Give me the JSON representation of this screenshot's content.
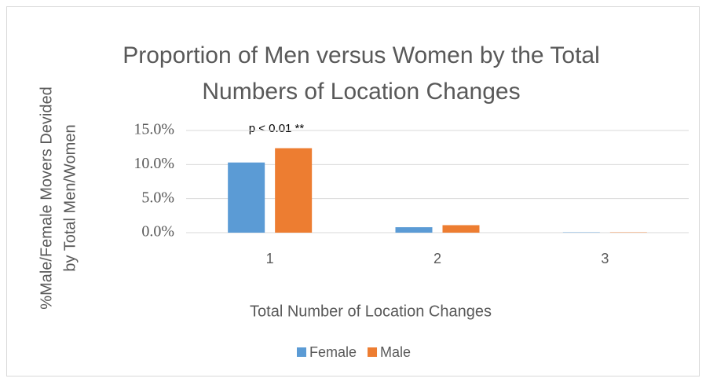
{
  "chart_data": {
    "type": "bar",
    "title": "Proportion of Men versus Women by the Total Numbers of Location Changes",
    "title_lines": [
      "Proportion of Men versus Women by the Total",
      "Numbers of Location Changes"
    ],
    "y_axis_label_lines": [
      "%Male/Female Movers Devided",
      "by Total Men/Women"
    ],
    "x_axis_label": "Total Number of Location Changes",
    "annotation": "p < 0.01 **",
    "categories": [
      "1",
      "2",
      "3"
    ],
    "series": [
      {
        "name": "Female",
        "color": "#5b9bd5",
        "values": [
          10.3,
          0.8,
          0.05
        ]
      },
      {
        "name": "Male",
        "color": "#ed7d31",
        "values": [
          12.4,
          1.1,
          0.05
        ]
      }
    ],
    "ylim": [
      0,
      15
    ],
    "yticks": [
      {
        "value": 0,
        "label": "0.0%"
      },
      {
        "value": 5,
        "label": "5.0%"
      },
      {
        "value": 10,
        "label": "10.0%"
      },
      {
        "value": 15,
        "label": "15.0%"
      }
    ],
    "grid": true,
    "legend": "bottom"
  }
}
